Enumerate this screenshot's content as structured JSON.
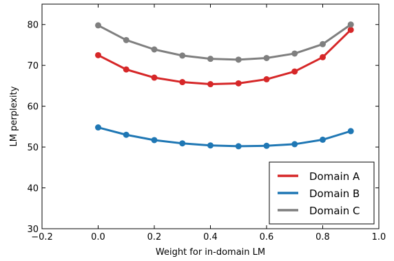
{
  "chart_data": {
    "type": "line",
    "title": "",
    "xlabel": "Weight for in-domain LM",
    "ylabel": "LM perplexity",
    "xlim": [
      -0.2,
      1.0
    ],
    "ylim": [
      30,
      85
    ],
    "xticks": [
      -0.2,
      0.0,
      0.2,
      0.4,
      0.6,
      0.8,
      1.0
    ],
    "xtick_labels": [
      "−0.2",
      "0.0",
      "0.2",
      "0.4",
      "0.6",
      "0.8",
      "1.0"
    ],
    "yticks": [
      30,
      40,
      50,
      60,
      70,
      80
    ],
    "ytick_labels": [
      "30",
      "40",
      "50",
      "60",
      "70",
      "80"
    ],
    "grid": false,
    "legend_position": "bottom-right",
    "x": [
      0.0,
      0.1,
      0.2,
      0.3,
      0.4,
      0.5,
      0.6,
      0.7,
      0.8,
      0.9
    ],
    "series": [
      {
        "name": "Domain A",
        "color": "#d62728",
        "values": [
          72.5,
          69.0,
          67.0,
          65.9,
          65.4,
          65.6,
          66.6,
          68.5,
          72.0,
          78.7
        ]
      },
      {
        "name": "Domain B",
        "color": "#1f77b4",
        "values": [
          54.8,
          53.0,
          51.7,
          50.9,
          50.4,
          50.2,
          50.3,
          50.7,
          51.8,
          53.9
        ]
      },
      {
        "name": "Domain C",
        "color": "#7f7f7f",
        "values": [
          79.8,
          76.2,
          73.9,
          72.4,
          71.6,
          71.4,
          71.8,
          72.9,
          75.2,
          80.0
        ]
      }
    ]
  }
}
